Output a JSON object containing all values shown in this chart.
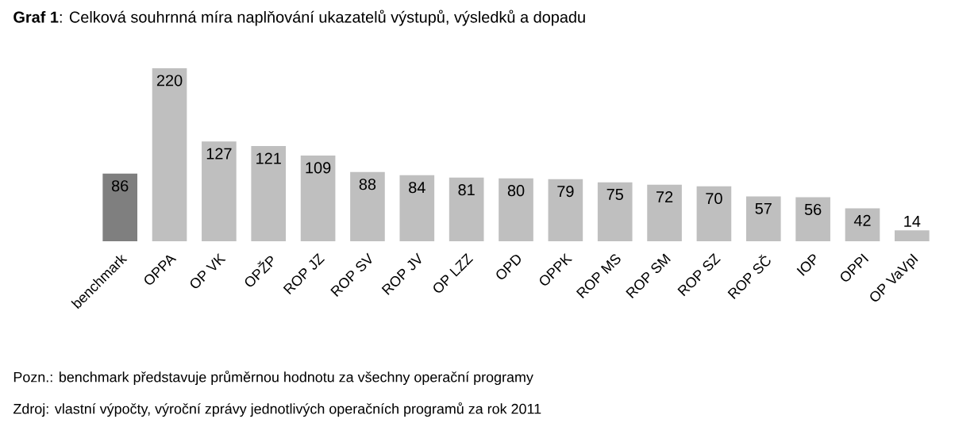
{
  "chart_data": {
    "type": "bar",
    "title": "**Graf 1**: Celková souhrnná míra naplňování ukazatelů výstupů, výsledků a dopadu",
    "categories": [
      "benchmark",
      "OPPA",
      "OP VK",
      "OPŽP",
      "ROP JZ",
      "ROP SV",
      "ROP JV",
      "OP LZZ",
      "OPD",
      "OPPK",
      "ROP MS",
      "ROP SM",
      "ROP SZ",
      "ROP SČ",
      "IOP",
      "OPPI",
      "OP VaVpI"
    ],
    "values": [
      86,
      220,
      127,
      121,
      109,
      88,
      84,
      81,
      80,
      79,
      75,
      72,
      70,
      57,
      56,
      42,
      14
    ],
    "colors": [
      "#7f7f7f",
      "#bfbfbf",
      "#bfbfbf",
      "#bfbfbf",
      "#bfbfbf",
      "#bfbfbf",
      "#bfbfbf",
      "#bfbfbf",
      "#bfbfbf",
      "#bfbfbf",
      "#bfbfbf",
      "#bfbfbf",
      "#bfbfbf",
      "#bfbfbf",
      "#bfbfbf",
      "#bfbfbf",
      "#bfbfbf"
    ],
    "data_labels": true,
    "annotations": [
      "Pozn.: benchmark představuje průměrnou hodnotu za všechny operační programy",
      "Zdroj: vlastní výpočty, výroční zprávy jednotlivých operačních programů za rok 2011"
    ]
  }
}
